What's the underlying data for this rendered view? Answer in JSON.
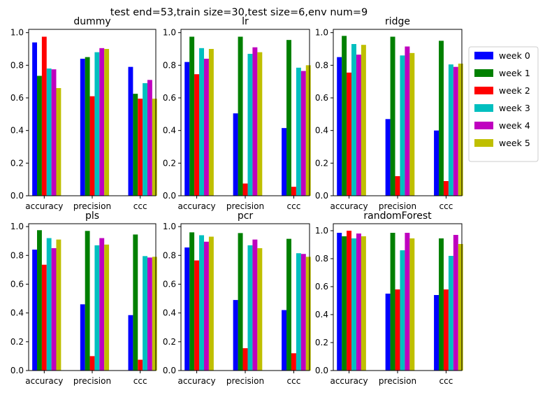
{
  "figure": {
    "suptitle": "test end=53,train size=30,test size=6,env num=9"
  },
  "legend": {
    "placement": "outside-right",
    "entries": [
      {
        "label": "week 0",
        "color": "#0000ff"
      },
      {
        "label": "week 1",
        "color": "#008000"
      },
      {
        "label": "week 2",
        "color": "#ff0000"
      },
      {
        "label": "week 3",
        "color": "#00bfbf"
      },
      {
        "label": "week 4",
        "color": "#bf00bf"
      },
      {
        "label": "week 5",
        "color": "#bfbf00"
      }
    ]
  },
  "chart_data": [
    {
      "type": "bar",
      "title": "dummy",
      "categories": [
        "accuracy",
        "precision",
        "ccc"
      ],
      "ylim": [
        0,
        1.02
      ],
      "yticks": [
        "0.0",
        "0.2",
        "0.4",
        "0.6",
        "0.8",
        "1.0"
      ],
      "series": [
        {
          "name": "week 0",
          "values": [
            0.94,
            0.84,
            0.79
          ]
        },
        {
          "name": "week 1",
          "values": [
            0.735,
            0.85,
            0.625
          ]
        },
        {
          "name": "week 2",
          "values": [
            0.975,
            0.61,
            0.595
          ]
        },
        {
          "name": "week 3",
          "values": [
            0.78,
            0.88,
            0.69
          ]
        },
        {
          "name": "week 4",
          "values": [
            0.775,
            0.905,
            0.71
          ]
        },
        {
          "name": "week 5",
          "values": [
            0.66,
            0.9,
            0.595
          ]
        }
      ]
    },
    {
      "type": "bar",
      "title": "lr",
      "categories": [
        "accuracy",
        "precision",
        "ccc"
      ],
      "ylim": [
        0,
        1.02
      ],
      "yticks": [
        "0.0",
        "0.2",
        "0.4",
        "0.6",
        "0.8",
        "1.0"
      ],
      "series": [
        {
          "name": "week 0",
          "values": [
            0.82,
            0.505,
            0.415
          ]
        },
        {
          "name": "week 1",
          "values": [
            0.975,
            0.975,
            0.955
          ]
        },
        {
          "name": "week 2",
          "values": [
            0.745,
            0.075,
            0.055
          ]
        },
        {
          "name": "week 3",
          "values": [
            0.905,
            0.87,
            0.785
          ]
        },
        {
          "name": "week 4",
          "values": [
            0.84,
            0.91,
            0.765
          ]
        },
        {
          "name": "week 5",
          "values": [
            0.9,
            0.88,
            0.8
          ]
        }
      ]
    },
    {
      "type": "bar",
      "title": "ridge",
      "categories": [
        "accuracy",
        "precision",
        "ccc"
      ],
      "ylim": [
        0,
        1.02
      ],
      "yticks": [
        "0.0",
        "0.2",
        "0.4",
        "0.6",
        "0.8",
        "1.0"
      ],
      "series": [
        {
          "name": "week 0",
          "values": [
            0.85,
            0.47,
            0.4
          ]
        },
        {
          "name": "week 1",
          "values": [
            0.98,
            0.975,
            0.95
          ]
        },
        {
          "name": "week 2",
          "values": [
            0.755,
            0.12,
            0.09
          ]
        },
        {
          "name": "week 3",
          "values": [
            0.93,
            0.86,
            0.805
          ]
        },
        {
          "name": "week 4",
          "values": [
            0.865,
            0.915,
            0.79
          ]
        },
        {
          "name": "week 5",
          "values": [
            0.925,
            0.875,
            0.81
          ]
        }
      ]
    },
    {
      "type": "bar",
      "title": "pls",
      "categories": [
        "accuracy",
        "precision",
        "ccc"
      ],
      "ylim": [
        0,
        1.02
      ],
      "yticks": [
        "0.0",
        "0.2",
        "0.4",
        "0.6",
        "0.8",
        "1.0"
      ],
      "series": [
        {
          "name": "week 0",
          "values": [
            0.84,
            0.46,
            0.385
          ]
        },
        {
          "name": "week 1",
          "values": [
            0.975,
            0.97,
            0.945
          ]
        },
        {
          "name": "week 2",
          "values": [
            0.735,
            0.1,
            0.075
          ]
        },
        {
          "name": "week 3",
          "values": [
            0.92,
            0.87,
            0.795
          ]
        },
        {
          "name": "week 4",
          "values": [
            0.85,
            0.92,
            0.785
          ]
        },
        {
          "name": "week 5",
          "values": [
            0.91,
            0.875,
            0.79
          ]
        }
      ]
    },
    {
      "type": "bar",
      "title": "pcr",
      "categories": [
        "accuracy",
        "precision",
        "ccc"
      ],
      "ylim": [
        0,
        1.02
      ],
      "yticks": [
        "0.0",
        "0.2",
        "0.4",
        "0.6",
        "0.8",
        "1.0"
      ],
      "series": [
        {
          "name": "week 0",
          "values": [
            0.855,
            0.49,
            0.42
          ]
        },
        {
          "name": "week 1",
          "values": [
            0.96,
            0.955,
            0.915
          ]
        },
        {
          "name": "week 2",
          "values": [
            0.765,
            0.155,
            0.12
          ]
        },
        {
          "name": "week 3",
          "values": [
            0.94,
            0.87,
            0.815
          ]
        },
        {
          "name": "week 4",
          "values": [
            0.895,
            0.91,
            0.81
          ]
        },
        {
          "name": "week 5",
          "values": [
            0.93,
            0.85,
            0.79
          ]
        }
      ]
    },
    {
      "type": "bar",
      "title": "randomForest",
      "categories": [
        "accuracy",
        "precision",
        "ccc"
      ],
      "ylim": [
        0,
        1.05
      ],
      "yticks": [
        "0.0",
        "0.2",
        "0.4",
        "0.6",
        "0.8",
        "1.0"
      ],
      "series": [
        {
          "name": "week 0",
          "values": [
            0.985,
            0.55,
            0.54
          ]
        },
        {
          "name": "week 1",
          "values": [
            0.96,
            0.985,
            0.945
          ]
        },
        {
          "name": "week 2",
          "values": [
            1.0,
            0.58,
            0.58
          ]
        },
        {
          "name": "week 3",
          "values": [
            0.945,
            0.86,
            0.82
          ]
        },
        {
          "name": "week 4",
          "values": [
            0.98,
            0.985,
            0.97
          ]
        },
        {
          "name": "week 5",
          "values": [
            0.96,
            0.945,
            0.905
          ]
        }
      ]
    }
  ]
}
